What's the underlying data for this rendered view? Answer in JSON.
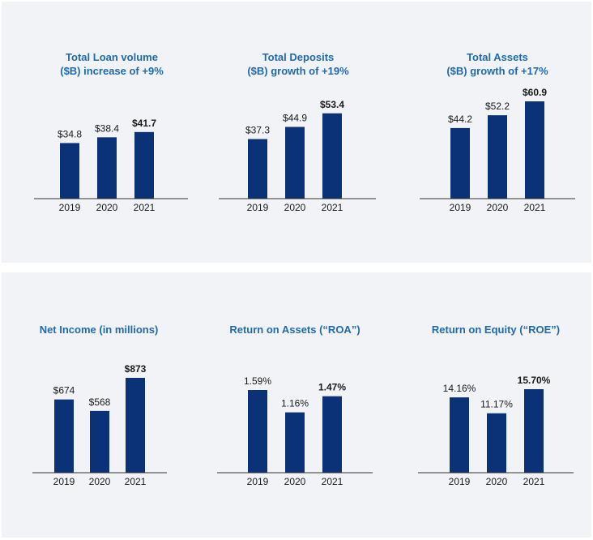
{
  "colors": {
    "bar": "#0b3177",
    "title": "#1f6aae",
    "axis": "#333333",
    "panel": "#f2f3f6"
  },
  "chart_data": [
    {
      "type": "bar",
      "title": "Total Loan volume\n($B) increase of +9%",
      "categories": [
        "2019",
        "2020",
        "2021"
      ],
      "values": [
        34.8,
        38.4,
        41.7
      ],
      "labels": [
        "$34.8",
        "$38.4",
        "$41.7"
      ],
      "bold_index": 2,
      "ylim": [
        0,
        60.9
      ]
    },
    {
      "type": "bar",
      "title": "Total Deposits\n($B) growth of +19%",
      "categories": [
        "2019",
        "2020",
        "2021"
      ],
      "values": [
        37.3,
        44.9,
        53.4
      ],
      "labels": [
        "$37.3",
        "$44.9",
        "$53.4"
      ],
      "bold_index": 2,
      "ylim": [
        0,
        60.9
      ]
    },
    {
      "type": "bar",
      "title": "Total Assets\n($B) growth of +17%",
      "categories": [
        "2019",
        "2020",
        "2021"
      ],
      "values": [
        44.2,
        52.2,
        60.9
      ],
      "labels": [
        "$44.2",
        "$52.2",
        "$60.9"
      ],
      "bold_index": 2,
      "ylim": [
        0,
        60.9
      ]
    },
    {
      "type": "bar",
      "title": "Net Income (in millions)",
      "categories": [
        "2019",
        "2020",
        "2021"
      ],
      "values": [
        674,
        568,
        873
      ],
      "labels": [
        "$674",
        "$568",
        "$873"
      ],
      "bold_index": 2,
      "ylim": [
        0,
        873
      ]
    },
    {
      "type": "bar",
      "title": "Return on Assets (“ROA”)",
      "categories": [
        "2019",
        "2020",
        "2021"
      ],
      "values": [
        1.59,
        1.16,
        1.47
      ],
      "labels": [
        "1.59%",
        "1.16%",
        "1.47%"
      ],
      "bold_index": 2,
      "ylim": [
        0,
        1.59
      ]
    },
    {
      "type": "bar",
      "title": "Return on Equity (“ROE”)",
      "categories": [
        "2019",
        "2020",
        "2021"
      ],
      "values": [
        14.16,
        11.17,
        15.7
      ],
      "labels": [
        "14.16%",
        "11.17%",
        "15.70%"
      ],
      "bold_index": 2,
      "ylim": [
        0,
        15.7
      ]
    }
  ]
}
